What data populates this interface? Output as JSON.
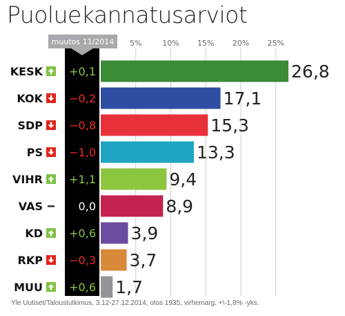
{
  "title": "Puoluekannatusarviot",
  "change_header": "muutos 11/2014",
  "source": "Yle Uutiset/Taloustutkimus, 3.12-27.12.2014, otos 1935, virhemarg. +\\-1,8% -yks.",
  "colors": {
    "up_arrow_bg": "#7cc242",
    "down_arrow_bg": "#e2231a",
    "up_text": "#8dc63f",
    "down_text": "#ee2b24",
    "neutral_text": "#ffffff",
    "change_column_bg": "#000000",
    "header_bg": "#a7a9ac",
    "grid": "#cccccc"
  },
  "chart_data": {
    "type": "bar",
    "orientation": "horizontal",
    "categories": [
      "KESK",
      "KOK",
      "SDP",
      "PS",
      "VIHR",
      "VAS",
      "KD",
      "RKP",
      "MUU"
    ],
    "values": [
      26.8,
      17.1,
      15.3,
      13.3,
      9.4,
      8.9,
      3.9,
      3.7,
      1.7
    ],
    "value_labels": [
      "26,8",
      "17,1",
      "15,3",
      "13,3",
      "9,4",
      "8,9",
      "3,9",
      "3,7",
      "1,7"
    ],
    "bar_colors": [
      "#3a8a36",
      "#2f4ea3",
      "#e8303a",
      "#1fa3c3",
      "#8cc63e",
      "#c4234f",
      "#6b4ca0",
      "#d9893a",
      "#939598"
    ],
    "change_labels": [
      "+0,1",
      "−0,2",
      "−0,8",
      "−1,0",
      "+1,1",
      "0,0",
      "+0,6",
      "−0,3",
      "+0,6"
    ],
    "change_direction": [
      "up",
      "down",
      "down",
      "down",
      "up",
      "none",
      "up",
      "down",
      "up"
    ],
    "xticks": [
      5,
      10,
      15,
      20,
      25
    ],
    "xtick_labels": [
      "5%",
      "10%",
      "15%",
      "20%",
      "25%"
    ],
    "xlim": [
      0,
      27
    ],
    "grid": true
  }
}
